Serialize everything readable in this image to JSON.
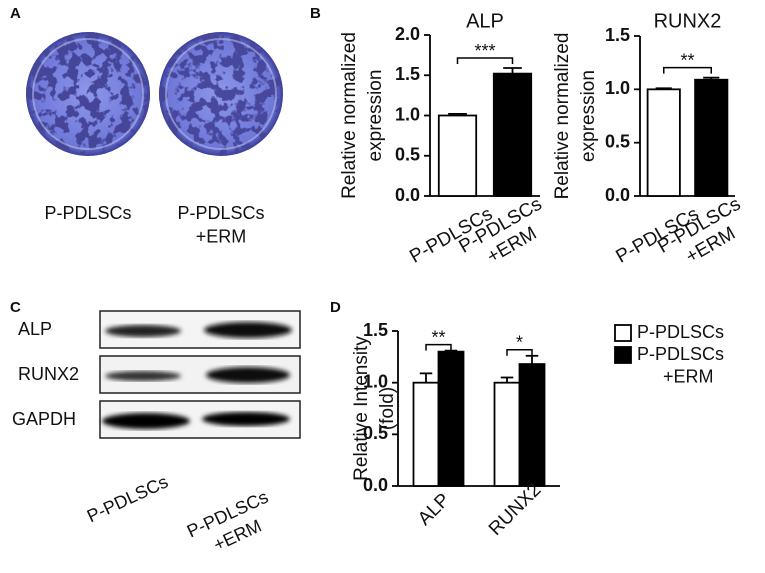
{
  "panels": {
    "A": {
      "label": "A",
      "captions": [
        "P-PDLSCs",
        "P-PDLSCs +ERM"
      ]
    },
    "B": {
      "label": "B"
    },
    "C": {
      "label": "C",
      "rows": [
        "ALP",
        "RUNX2",
        "GAPDH"
      ],
      "lanes": [
        "P-PDLSCs",
        "P-PDLSCs +ERM"
      ]
    },
    "D": {
      "label": "D"
    }
  },
  "chart_data": [
    {
      "type": "bar",
      "title": "ALP",
      "ylabel": [
        "Relative normalized",
        "expression"
      ],
      "categories": [
        "P-PDLSCs",
        "P-PDLSCs +ERM"
      ],
      "series": [
        {
          "values": [
            1.0,
            1.52
          ],
          "errors": [
            0.02,
            0.07
          ],
          "colors": [
            "#ffffff",
            "#000000"
          ]
        }
      ],
      "annotations": [
        "***"
      ],
      "ylim": [
        0,
        2
      ],
      "yticks": [
        {
          "value": 0,
          "label": "0.0"
        },
        0.5,
        {
          "value": 1,
          "label": "1.0"
        },
        1.5,
        {
          "value": 2,
          "label": "2.0"
        }
      ]
    },
    {
      "type": "bar",
      "title": "RUNX2",
      "ylabel": [
        "Relative normalized",
        "expression"
      ],
      "categories": [
        "P-PDLSCs",
        "P-PDLSCs +ERM"
      ],
      "series": [
        {
          "values": [
            1.0,
            1.09
          ],
          "errors": [
            0.01,
            0.02
          ],
          "colors": [
            "#ffffff",
            "#000000"
          ]
        }
      ],
      "annotations": [
        "**"
      ],
      "ylim": [
        0,
        1.5
      ],
      "yticks": [
        {
          "value": 0,
          "label": "0.0"
        },
        0.5,
        {
          "value": 1,
          "label": "1.0"
        },
        1.5
      ]
    },
    {
      "type": "bar",
      "ylabel": [
        "Relative Intensity",
        "(fold)"
      ],
      "categories": [
        "ALP",
        "RUNX2"
      ],
      "series": [
        {
          "name": "P-PDLSCs",
          "color": "#ffffff",
          "values": [
            1.0,
            1.0
          ],
          "errors": [
            0.09,
            0.05
          ]
        },
        {
          "name": "P-PDLSCs +ERM",
          "color": "#000000",
          "values": [
            1.3,
            1.18
          ],
          "errors": [
            0.01,
            0.08
          ]
        }
      ],
      "annotations": [
        "**",
        "*"
      ],
      "legend": "right",
      "ylim": [
        0,
        1.5
      ],
      "yticks": [
        {
          "value": 0,
          "label": "0.0"
        },
        0.5,
        {
          "value": 1,
          "label": "1.0"
        },
        1.5
      ]
    }
  ]
}
